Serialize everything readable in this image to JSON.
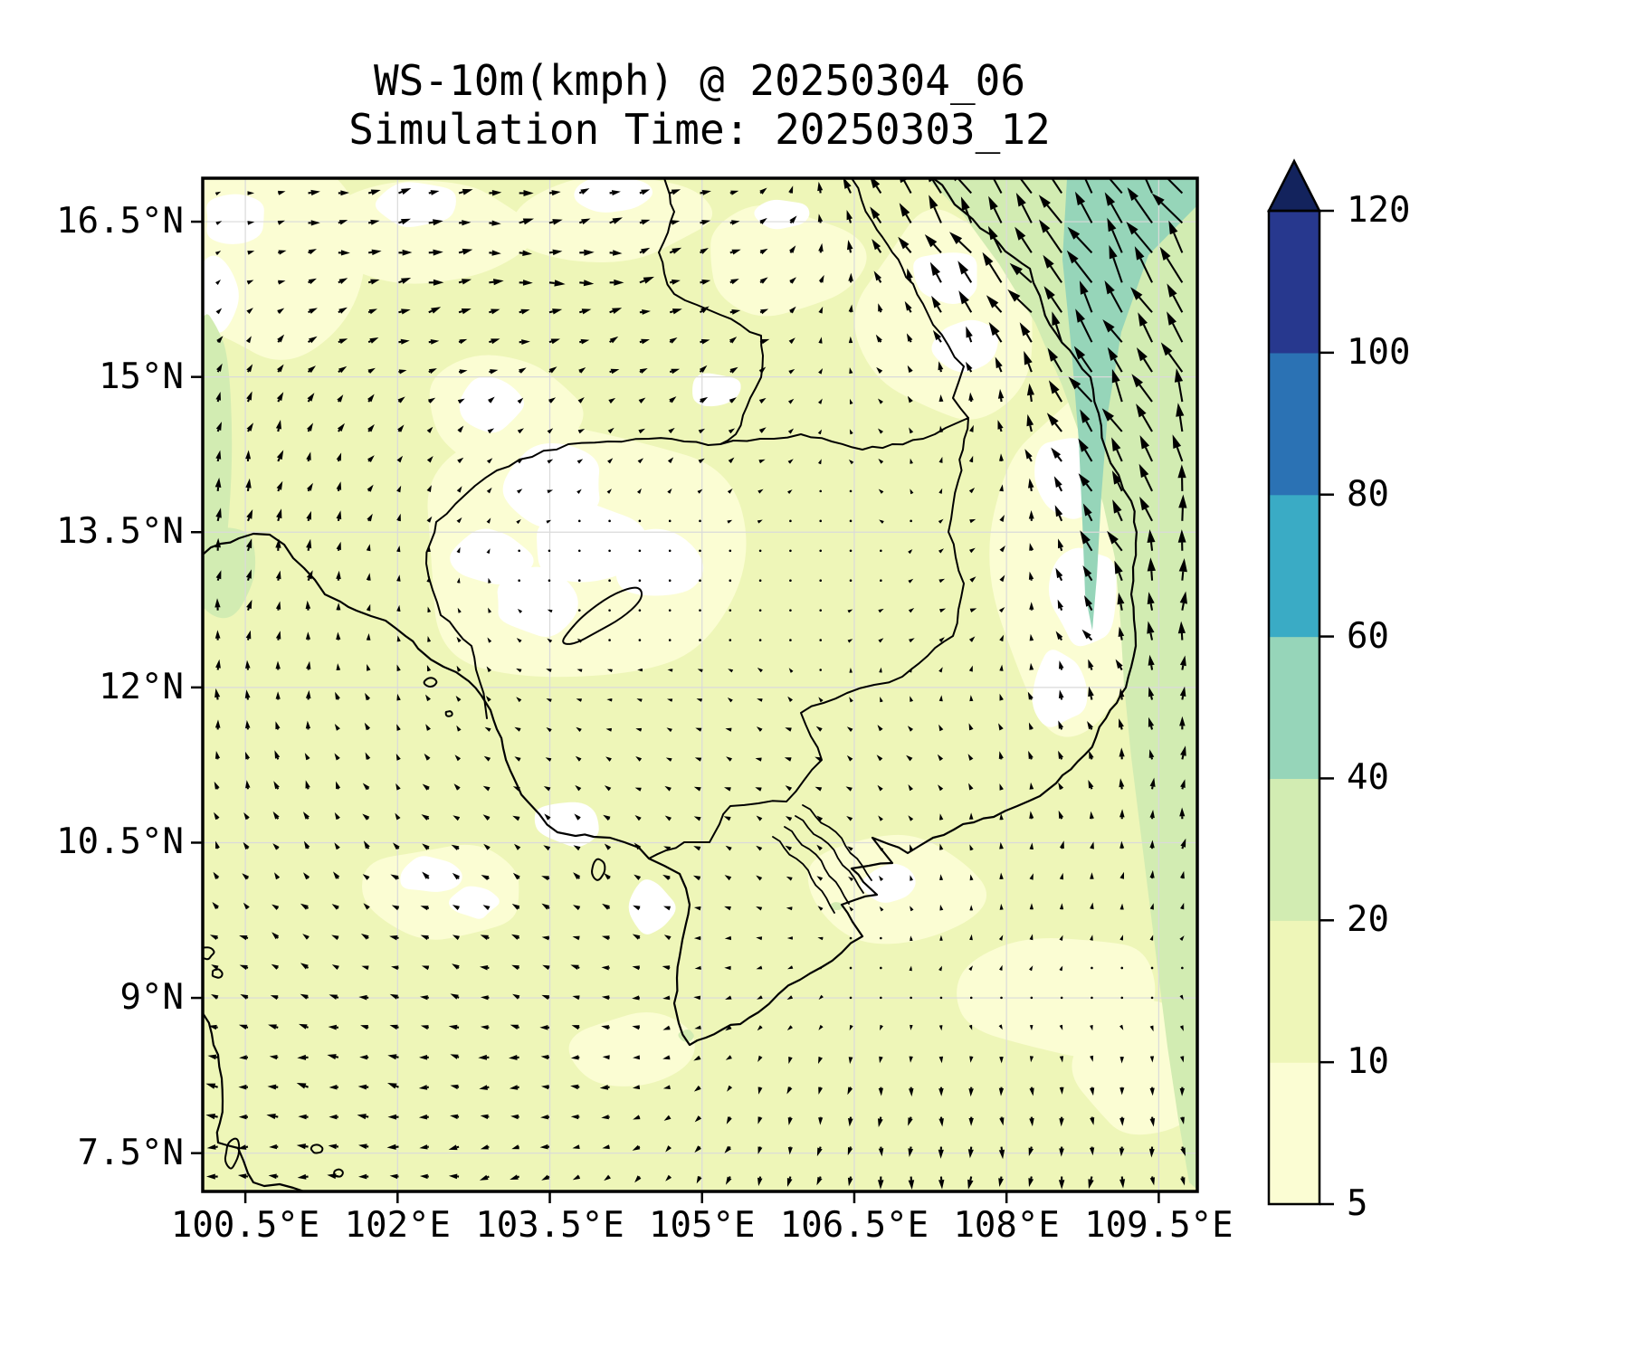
{
  "title": {
    "line1": "WS-10m(kmph) @ 20250304_06",
    "line2": "Simulation Time: 20250303_12"
  },
  "axes": {
    "x_ticks": [
      {
        "label": "100.5°E",
        "lon": 100.5
      },
      {
        "label": "102°E",
        "lon": 102
      },
      {
        "label": "103.5°E",
        "lon": 103.5
      },
      {
        "label": "105°E",
        "lon": 105
      },
      {
        "label": "106.5°E",
        "lon": 106.5
      },
      {
        "label": "108°E",
        "lon": 108
      },
      {
        "label": "109.5°E",
        "lon": 109.5
      }
    ],
    "y_ticks": [
      {
        "label": "16.5°N",
        "lat": 16.5
      },
      {
        "label": "15°N",
        "lat": 15
      },
      {
        "label": "13.5°N",
        "lat": 13.5
      },
      {
        "label": "12°N",
        "lat": 12
      },
      {
        "label": "10.5°N",
        "lat": 10.5
      },
      {
        "label": "9°N",
        "lat": 9
      },
      {
        "label": "7.5°N",
        "lat": 7.5
      }
    ],
    "lon_range": [
      100.08,
      109.88
    ],
    "lat_range": [
      7.13,
      16.92
    ]
  },
  "colorbar": {
    "levels": [
      5,
      10,
      20,
      40,
      60,
      80,
      100,
      120
    ],
    "tick_labels": [
      "5",
      "10",
      "20",
      "40",
      "60",
      "80",
      "100",
      "120"
    ],
    "colors": [
      "#fbfdd3",
      "#eef6b8",
      "#d2ecb2",
      "#96d5b9",
      "#3aabc5",
      "#2b72b4",
      "#27388e"
    ],
    "over_color": "#13235d",
    "grid_color": "#dadada",
    "coast_color": "#000000",
    "arrow_color": "#000000"
  },
  "chart_data": {
    "type": "quiver_contourf_map",
    "variable": "WS-10m",
    "units": "kmph",
    "valid_time_label": "20250304_06",
    "simulation_time_label": "20250303_12",
    "contour_levels": [
      5,
      10,
      20,
      40,
      60,
      80,
      100,
      120
    ],
    "legend_position": "right-colorbar",
    "grid_on": true,
    "wind_grid": {
      "lons": [
        100,
        101.1,
        102.2,
        103.3,
        104.4,
        105.6,
        106.7,
        107.8,
        108.9,
        110
      ],
      "lats": [
        17,
        15.9,
        14.8,
        13.7,
        12.6,
        11.4,
        10.3,
        9.2,
        8.1,
        7
      ],
      "u": [
        [
          2,
          8,
          9,
          9,
          8,
          6,
          -8,
          -16,
          -18,
          -16
        ],
        [
          1,
          7,
          10,
          11,
          10,
          6,
          -2,
          -13,
          -16,
          -14
        ],
        [
          2,
          5,
          5,
          4,
          5,
          5,
          -3,
          0,
          -12,
          -6
        ],
        [
          1,
          2,
          2,
          2,
          1,
          2,
          -2,
          4,
          -9,
          -2
        ],
        [
          1,
          1,
          -1,
          -2,
          -1,
          -1,
          3,
          4,
          -6,
          2
        ],
        [
          -1,
          -2,
          -3,
          -3,
          -3,
          -4,
          -4,
          -2,
          -3,
          3
        ],
        [
          -3,
          -4,
          -5,
          -5,
          -5,
          -4,
          -2,
          0,
          1,
          2
        ],
        [
          -6,
          -6,
          -6,
          -6,
          -6,
          -3,
          0,
          1,
          1,
          1
        ],
        [
          -8,
          -8,
          -8,
          -7,
          -6,
          -2,
          -1,
          0,
          0,
          1
        ],
        [
          -7,
          -8,
          -7,
          -6,
          -4,
          -2,
          -1,
          -1,
          0,
          1
        ]
      ],
      "v": [
        [
          0,
          1,
          2,
          2,
          2,
          4,
          14,
          22,
          26,
          26
        ],
        [
          2,
          2,
          1,
          1,
          2,
          3,
          8,
          18,
          24,
          24
        ],
        [
          8,
          6,
          3,
          3,
          4,
          3,
          2,
          8,
          20,
          22
        ],
        [
          10,
          8,
          4,
          1,
          1,
          1,
          1,
          2,
          16,
          20
        ],
        [
          9,
          7,
          3,
          1,
          0,
          1,
          1,
          2,
          10,
          16
        ],
        [
          7,
          6,
          4,
          2,
          1,
          2,
          3,
          5,
          7,
          10
        ],
        [
          5,
          5,
          4,
          3,
          4,
          2,
          2,
          4,
          6,
          8
        ],
        [
          2,
          2,
          2,
          2,
          1,
          -1,
          1,
          2,
          1,
          -1
        ],
        [
          1,
          1,
          1,
          0,
          -1,
          -5,
          -7,
          -7,
          -6,
          -6
        ],
        [
          -1,
          0,
          -1,
          -2,
          -4,
          -7,
          -9,
          -10,
          -9,
          -8
        ]
      ]
    }
  }
}
